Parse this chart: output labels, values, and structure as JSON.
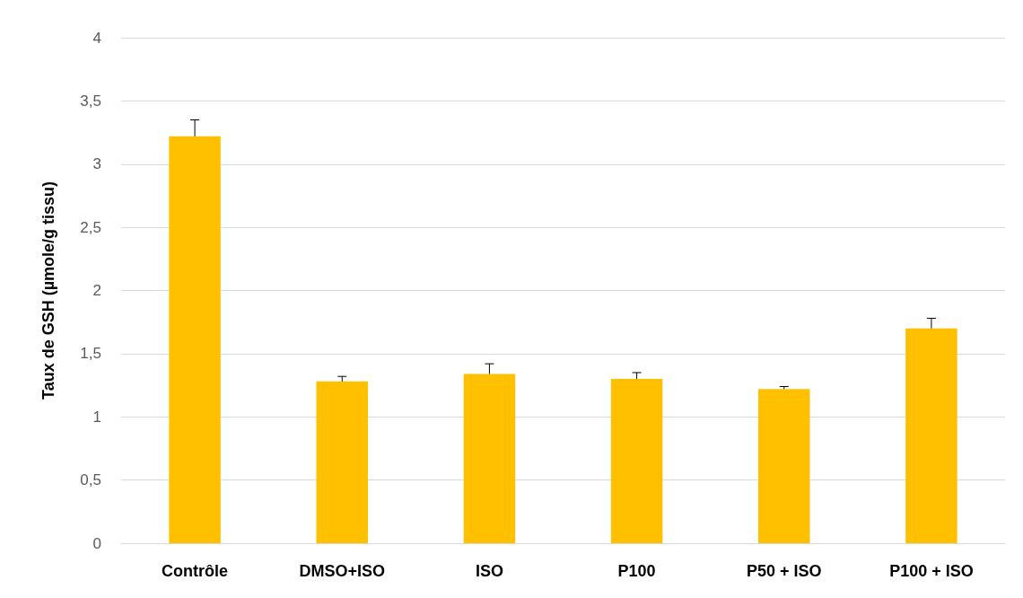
{
  "chart_data": {
    "type": "bar",
    "ylabel": "Taux de GSH (µmole/g tissu)",
    "categories": [
      "Contrôle",
      "DMSO+ISO",
      "ISO",
      "P100",
      "P50 + ISO",
      "P100 + ISO"
    ],
    "values": [
      3.22,
      1.28,
      1.34,
      1.3,
      1.22,
      1.7
    ],
    "errors": [
      [
        3.22,
        3.35
      ],
      [
        1.28,
        1.32
      ],
      [
        1.34,
        1.42
      ],
      [
        1.3,
        1.35
      ],
      [
        1.22,
        1.24
      ],
      [
        1.7,
        1.78
      ]
    ],
    "color": "#ffc000",
    "ylim": [
      0,
      4
    ],
    "yticks": [
      0,
      {
        "value": 0.5,
        "label": "0,5"
      },
      1,
      {
        "value": 1.5,
        "label": "1,5"
      },
      2,
      {
        "value": 2.5,
        "label": "2,5"
      },
      3,
      {
        "value": 3.5,
        "label": "3,5"
      },
      4
    ],
    "grid": "y"
  }
}
